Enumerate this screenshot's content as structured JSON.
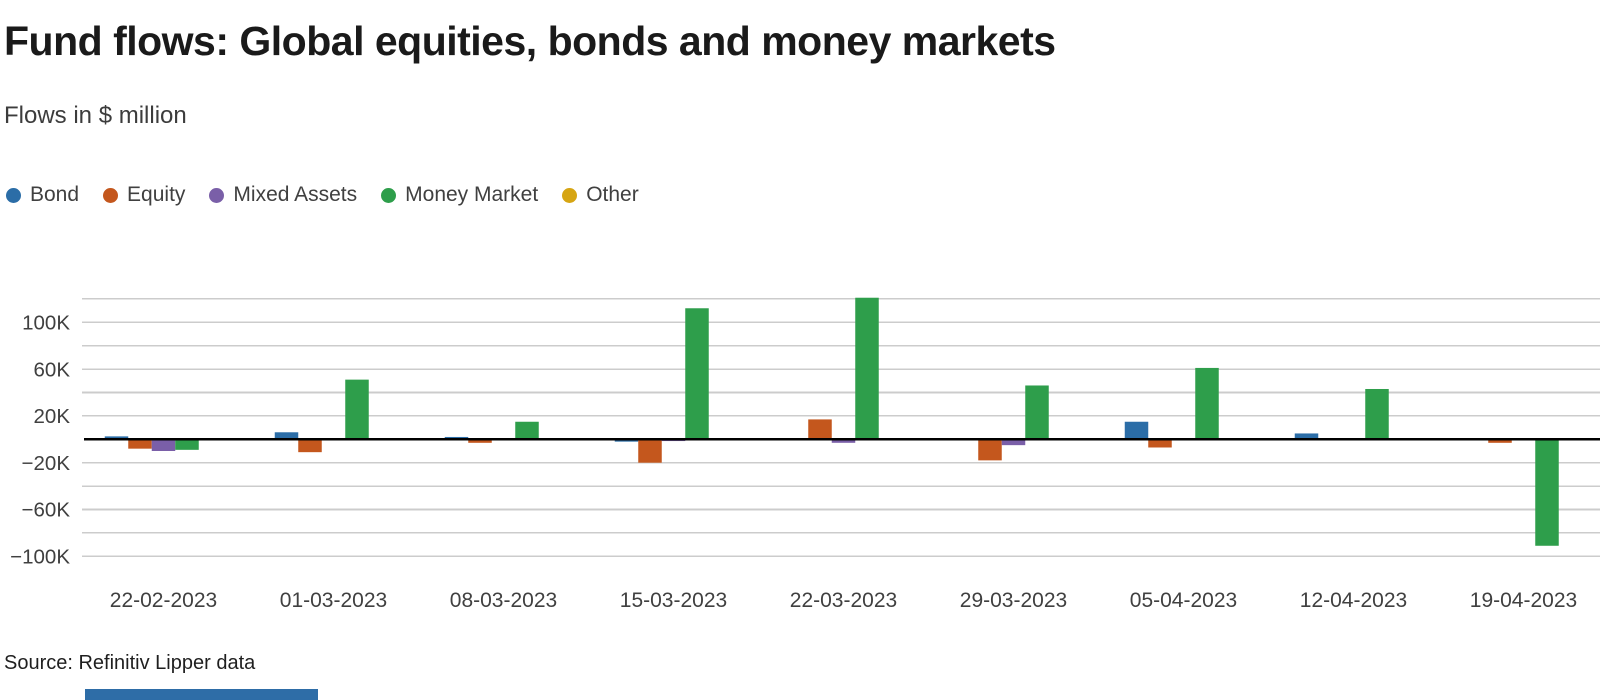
{
  "header": {
    "title": "Fund flows: Global equities, bonds and money markets",
    "subtitle": "Flows in $ million"
  },
  "footer": {
    "source": "Source: Refinitiv Lipper data",
    "strip_color": "#2e6da7"
  },
  "colors": {
    "background": "#ffffff",
    "title_text": "#1a1a1a",
    "secondary_text": "#404040",
    "gridline": "#cccccc",
    "zero_line": "#000000"
  },
  "chart_data": {
    "type": "bar",
    "title": "Fund flows: Global equities, bonds and money markets",
    "subtitle": "Flows in $ million",
    "unit": "$ million (y axis shown in thousands, K)",
    "grid": "horizontal gridlines every 20K, black zero line",
    "legend_position": "top-left above plot",
    "categories": [
      "22-02-2023",
      "01-03-2023",
      "08-03-2023",
      "15-03-2023",
      "22-03-2023",
      "29-03-2023",
      "05-04-2023",
      "12-04-2023",
      "19-04-2023"
    ],
    "series": [
      {
        "name": "Bond",
        "color": "#2b6da7",
        "values": [
          2500,
          6000,
          2000,
          -2000,
          -1000,
          -1000,
          15000,
          5000,
          0
        ]
      },
      {
        "name": "Equity",
        "color": "#c4571d",
        "values": [
          -8000,
          -11000,
          -3000,
          -20000,
          17000,
          -18000,
          -7000,
          -1000,
          -3000
        ]
      },
      {
        "name": "Mixed Assets",
        "color": "#7a5fa8",
        "values": [
          -10000,
          -1000,
          0,
          -1500,
          -3000,
          -5000,
          0,
          -1000,
          0
        ]
      },
      {
        "name": "Money Market",
        "color": "#2e9e4b",
        "values": [
          -9000,
          51000,
          15000,
          112000,
          121000,
          46000,
          61000,
          43000,
          -91000
        ]
      },
      {
        "name": "Other",
        "color": "#d6a513",
        "values": [
          0,
          0,
          0,
          0,
          0,
          -1000,
          0,
          0,
          0
        ]
      }
    ],
    "y_axis": {
      "range": [
        -110000,
        130000
      ],
      "gridline_step": 20000,
      "labeled_ticks": [
        100000,
        60000,
        20000,
        -20000,
        -60000,
        -100000
      ],
      "tick_labels": [
        "100K",
        "60K",
        "20K",
        "−20K",
        "−60K",
        "−100K"
      ]
    }
  }
}
